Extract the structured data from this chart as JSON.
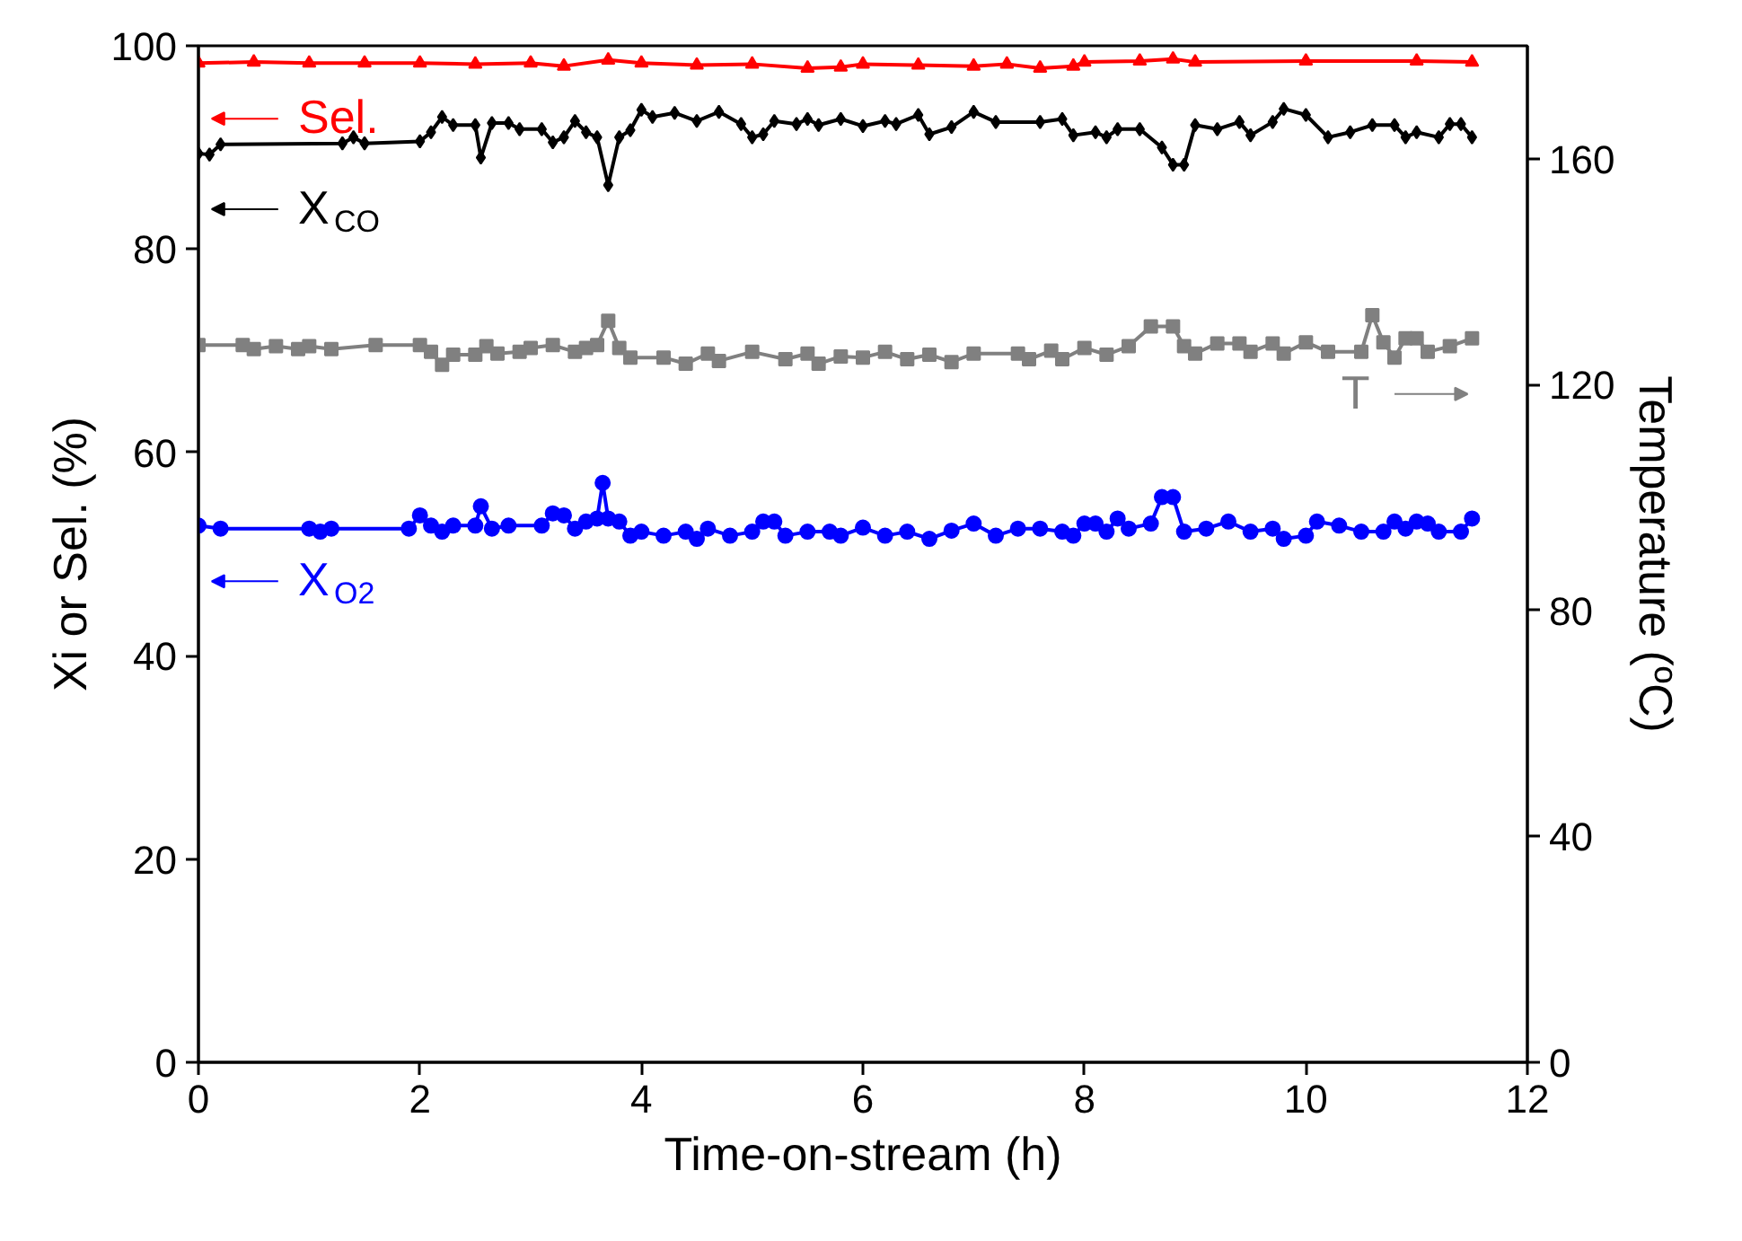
{
  "chart_data": {
    "type": "line",
    "xlabel": "Time-on-stream (h)",
    "ylabel": "Xi or Sel. (%)",
    "y2label": "Temperature (ºC)",
    "xlim": [
      0,
      12
    ],
    "xticks": [
      0,
      2,
      4,
      6,
      8,
      10,
      12
    ],
    "ylim": [
      0,
      100
    ],
    "yticks": [
      0,
      20,
      40,
      60,
      80,
      100
    ],
    "y2lim": [
      0,
      180
    ],
    "y2ticks": [
      0,
      40,
      80,
      120,
      160
    ],
    "grid": false,
    "legend": "left",
    "line_style": "solid",
    "series": [
      {
        "name": "Sel.",
        "color": "#ff0000",
        "marker": "triangle",
        "x": [
          0,
          0.5,
          1,
          1.5,
          2,
          2.5,
          3,
          3.3,
          3.7,
          4,
          4.5,
          5,
          5.5,
          5.8,
          6,
          6.5,
          7,
          7.3,
          7.6,
          7.9,
          8,
          8.5,
          8.8,
          9,
          10,
          11,
          11.5
        ],
        "values": [
          98.3,
          98.4,
          98.3,
          98.3,
          98.3,
          98.2,
          98.3,
          98.0,
          98.6,
          98.3,
          98.1,
          98.2,
          97.8,
          97.9,
          98.2,
          98.1,
          98.0,
          98.2,
          97.8,
          98.0,
          98.4,
          98.5,
          98.7,
          98.4,
          98.5,
          98.5,
          98.4
        ]
      },
      {
        "name": "X$_{CO}$",
        "color": "#000000",
        "marker": "diamond",
        "x": [
          0,
          0.1,
          0.2,
          1.3,
          1.4,
          1.5,
          2.0,
          2.1,
          2.2,
          2.3,
          2.5,
          2.55,
          2.65,
          2.8,
          2.9,
          3.1,
          3.2,
          3.3,
          3.4,
          3.5,
          3.6,
          3.7,
          3.8,
          3.9,
          4.0,
          4.1,
          4.3,
          4.5,
          4.7,
          4.9,
          5.0,
          5.1,
          5.2,
          5.4,
          5.5,
          5.6,
          5.8,
          6.0,
          6.2,
          6.3,
          6.5,
          6.6,
          6.8,
          7.0,
          7.2,
          7.6,
          7.8,
          7.9,
          8.1,
          8.2,
          8.3,
          8.5,
          8.7,
          8.8,
          8.9,
          9.0,
          9.2,
          9.4,
          9.5,
          9.7,
          9.8,
          10.0,
          10.2,
          10.4,
          10.6,
          10.8,
          10.9,
          11.0,
          11.2,
          11.3,
          11.4,
          11.5
        ],
        "values": [
          89.4,
          89.3,
          90.3,
          90.4,
          91.0,
          90.4,
          90.6,
          91.5,
          93.0,
          92.2,
          92.2,
          89.0,
          92.4,
          92.4,
          91.8,
          91.8,
          90.5,
          91.0,
          92.6,
          91.5,
          91.0,
          86.3,
          91.0,
          91.7,
          93.7,
          93.0,
          93.4,
          92.6,
          93.5,
          92.3,
          91.0,
          91.3,
          92.6,
          92.3,
          92.8,
          92.2,
          92.8,
          92.1,
          92.6,
          92.3,
          93.2,
          91.3,
          92.0,
          93.5,
          92.5,
          92.5,
          92.8,
          91.2,
          91.5,
          91.0,
          91.8,
          91.8,
          90.0,
          88.3,
          88.3,
          92.2,
          91.8,
          92.5,
          91.2,
          92.5,
          93.8,
          93.2,
          91.0,
          91.5,
          92.2,
          92.2,
          91.0,
          91.5,
          91.0,
          92.3,
          92.3,
          91.0
        ]
      },
      {
        "name": "T",
        "color": "#808080",
        "marker": "square",
        "axis": "y2",
        "x": [
          0,
          0.4,
          0.5,
          0.7,
          0.9,
          1.0,
          1.2,
          1.6,
          2.0,
          2.1,
          2.2,
          2.3,
          2.5,
          2.6,
          2.7,
          2.9,
          3.0,
          3.2,
          3.4,
          3.5,
          3.6,
          3.7,
          3.8,
          3.9,
          4.2,
          4.4,
          4.6,
          4.7,
          5.0,
          5.3,
          5.5,
          5.6,
          5.8,
          6.0,
          6.2,
          6.4,
          6.6,
          6.8,
          7.0,
          7.4,
          7.5,
          7.7,
          7.8,
          8.0,
          8.2,
          8.4,
          8.6,
          8.8,
          8.9,
          9.0,
          9.2,
          9.4,
          9.5,
          9.7,
          9.8,
          10.0,
          10.2,
          10.5,
          10.6,
          10.7,
          10.8,
          10.9,
          11.0,
          11.1,
          11.3,
          11.5
        ],
        "values": [
          127,
          127,
          126.3,
          126.8,
          126.3,
          126.8,
          126.3,
          127,
          127,
          125.8,
          123.5,
          125.3,
          125.3,
          126.8,
          125.5,
          125.8,
          126.5,
          127,
          125.8,
          126.5,
          127,
          131.3,
          126.5,
          124.8,
          124.8,
          123.7,
          125.5,
          124.2,
          125.8,
          124.5,
          125.5,
          123.7,
          125,
          124.8,
          125.8,
          124.5,
          125.3,
          124,
          125.5,
          125.5,
          124.5,
          126,
          124.5,
          126.5,
          125.3,
          126.8,
          130.3,
          130.3,
          126.8,
          125.5,
          127.3,
          127.3,
          125.8,
          127.3,
          125.5,
          127.5,
          125.8,
          125.8,
          132.3,
          127.5,
          124.8,
          128.2,
          128.2,
          125.8,
          126.8,
          128.2
        ]
      },
      {
        "name": "X$_{O2}$",
        "color": "#0000ff",
        "marker": "circle",
        "x": [
          0,
          0.2,
          1.0,
          1.1,
          1.2,
          1.9,
          2.0,
          2.1,
          2.2,
          2.3,
          2.5,
          2.55,
          2.65,
          2.8,
          3.1,
          3.2,
          3.3,
          3.4,
          3.5,
          3.6,
          3.65,
          3.7,
          3.8,
          3.9,
          4.0,
          4.2,
          4.4,
          4.5,
          4.6,
          4.8,
          5.0,
          5.1,
          5.2,
          5.3,
          5.5,
          5.7,
          5.8,
          6.0,
          6.2,
          6.4,
          6.6,
          6.8,
          7.0,
          7.2,
          7.4,
          7.6,
          7.8,
          7.9,
          8.0,
          8.1,
          8.2,
          8.3,
          8.4,
          8.6,
          8.7,
          8.8,
          8.9,
          9.1,
          9.3,
          9.5,
          9.7,
          9.8,
          10.0,
          10.1,
          10.3,
          10.5,
          10.7,
          10.8,
          10.9,
          11.0,
          11.1,
          11.2,
          11.4,
          11.5
        ],
        "values": [
          52.8,
          52.5,
          52.5,
          52.2,
          52.5,
          52.5,
          53.8,
          52.8,
          52.2,
          52.8,
          52.8,
          54.7,
          52.5,
          52.8,
          52.8,
          54.0,
          53.8,
          52.5,
          53.2,
          53.5,
          57.0,
          53.5,
          53.2,
          51.8,
          52.2,
          51.8,
          52.2,
          51.5,
          52.5,
          51.8,
          52.2,
          53.2,
          53.2,
          51.8,
          52.2,
          52.2,
          51.8,
          52.6,
          51.8,
          52.2,
          51.5,
          52.3,
          53.0,
          51.8,
          52.5,
          52.5,
          52.2,
          51.8,
          53.0,
          53.0,
          52.2,
          53.5,
          52.5,
          53.0,
          55.6,
          55.6,
          52.2,
          52.5,
          53.2,
          52.2,
          52.5,
          51.5,
          51.8,
          53.2,
          52.8,
          52.2,
          52.2,
          53.2,
          52.5,
          53.2,
          53.0,
          52.2,
          52.2,
          53.5
        ]
      }
    ]
  }
}
